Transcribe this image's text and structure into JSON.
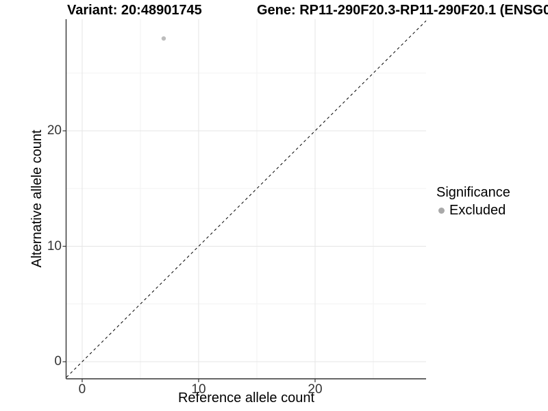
{
  "page": {
    "background": "#ffffff"
  },
  "chart_data": {
    "type": "scatter",
    "titles": {
      "variant": "Variant: 20:48901745",
      "gene": "Gene: RP11-290F20.3-RP11-290F20.1 (ENSG0"
    },
    "xlabel": "Reference allele count",
    "ylabel": "Alternative allele count",
    "x_ticks": [
      0,
      10,
      20
    ],
    "y_ticks": [
      0,
      10,
      20
    ],
    "x_minor_gridlines": [
      5,
      15,
      25
    ],
    "y_minor_gridlines": [
      5,
      15,
      25
    ],
    "xlim": [
      -1.35,
      29.53
    ],
    "ylim": [
      -1.48,
      29.67
    ],
    "grid": "on",
    "points": [
      {
        "x": 7,
        "y": 28,
        "significance": "Excluded"
      }
    ],
    "point_color": "#bdbdbd",
    "point_radius": 3.2,
    "identity_line": {
      "type": "abline",
      "slope": 1,
      "intercept": 0,
      "style": "dashed",
      "color": "#000000"
    },
    "legend": {
      "title": "Significance",
      "position": "right",
      "entries": [
        {
          "label": "Excluded",
          "color": "#a9a9a9"
        }
      ]
    },
    "colors": {
      "axis_line": "#333333",
      "tick_mark": "#333333",
      "grid_major": "#e5e5e5",
      "grid_minor": "#f2f2f2",
      "tick_label": "#333333",
      "text": "#000000"
    }
  }
}
